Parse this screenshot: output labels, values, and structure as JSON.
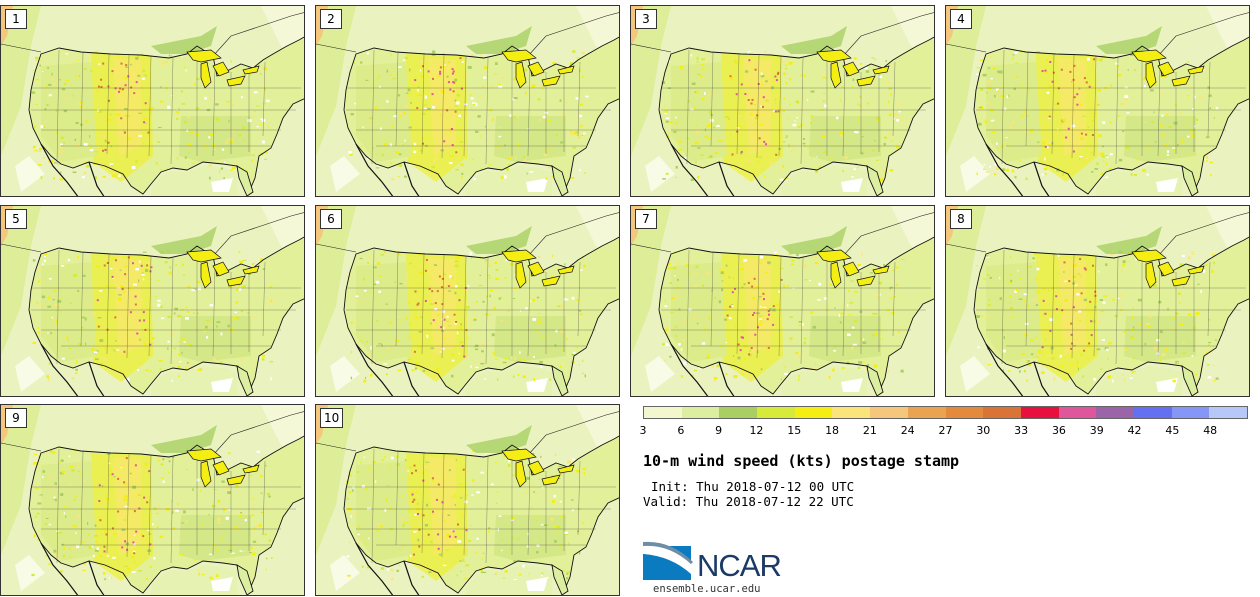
{
  "panels": [
    {
      "label": "1"
    },
    {
      "label": "2"
    },
    {
      "label": "3"
    },
    {
      "label": "4"
    },
    {
      "label": "5"
    },
    {
      "label": "6"
    },
    {
      "label": "7"
    },
    {
      "label": "8"
    },
    {
      "label": "9"
    },
    {
      "label": "10"
    }
  ],
  "colorbar": {
    "ticks": [
      "3",
      "6",
      "9",
      "12",
      "15",
      "18",
      "21",
      "24",
      "27",
      "30",
      "33",
      "36",
      "39",
      "42",
      "45",
      "48"
    ],
    "colors": [
      "#f2f7cd",
      "#dceea0",
      "#a9cf63",
      "#d7ea3a",
      "#f4ee12",
      "#fbe57a",
      "#f5c77c",
      "#eaa350",
      "#e48a3d",
      "#d97436",
      "#e8103c",
      "#e0569d",
      "#9b63a8",
      "#6470f2",
      "#8596f7",
      "#b6c8f8"
    ]
  },
  "title": "10-m wind speed (kts) postage stamp",
  "init": "Init: Thu 2018-07-12 00 UTC",
  "valid": "Valid: Thu 2018-07-12 22 UTC",
  "logo": {
    "text": "NCAR",
    "url": "ensemble.ucar.edu"
  }
}
